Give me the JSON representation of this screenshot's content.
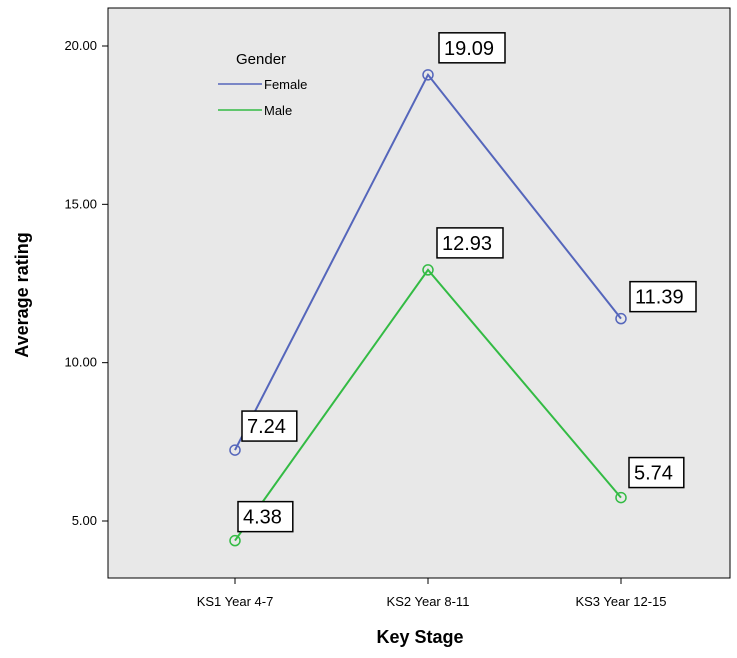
{
  "chart_data": {
    "type": "line",
    "xlabel": "Key Stage",
    "ylabel": "Average rating",
    "categories": [
      "KS1 Year 4-7",
      "KS2 Year 8-11",
      "KS3 Year 12-15"
    ],
    "ylim": [
      3.2,
      21.2
    ],
    "yticks": [
      5,
      10,
      15,
      20
    ],
    "ytick_labels": [
      "5.00",
      "10.00",
      "15.00",
      "20.00"
    ],
    "grid": false,
    "legend": {
      "title": "Gender",
      "placement": "top-left"
    },
    "series": [
      {
        "name": "Female",
        "color": "#5566bb",
        "values": [
          7.24,
          19.09,
          11.39
        ],
        "labels": [
          "7.24",
          "19.09",
          "11.39"
        ]
      },
      {
        "name": "Male",
        "color": "#33bb44",
        "values": [
          4.38,
          12.93,
          5.74
        ],
        "labels": [
          "4.38",
          "12.93",
          "5.74"
        ]
      }
    ],
    "plot_background": "#e8e8e8",
    "marker": "open-circle"
  }
}
